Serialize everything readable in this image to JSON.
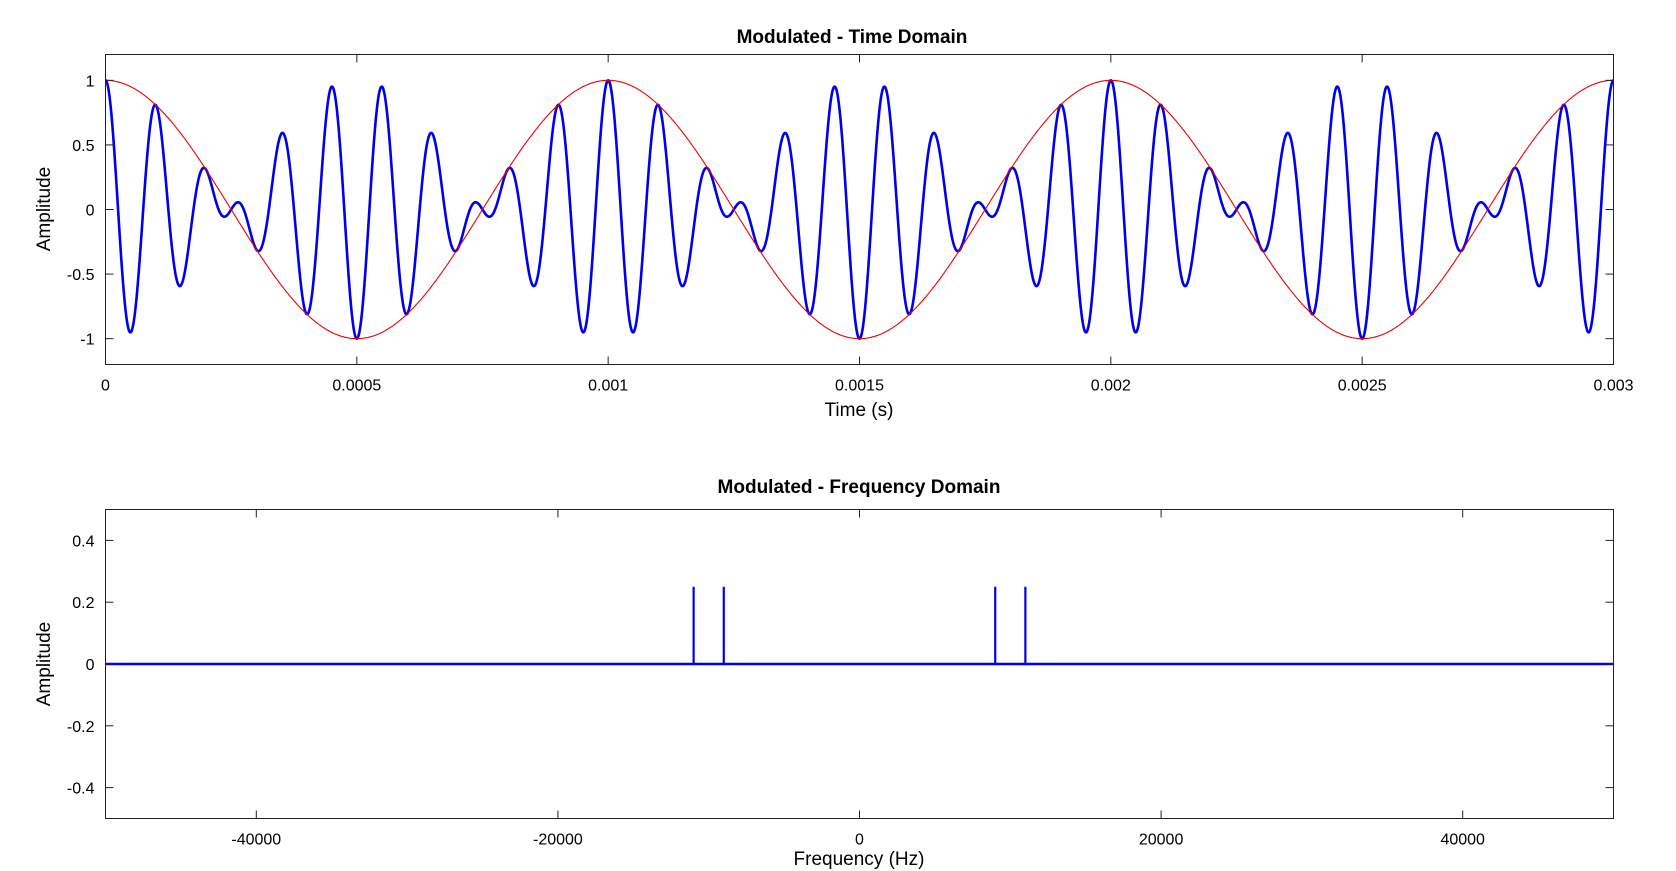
{
  "chart_data": [
    {
      "type": "line",
      "title": "Modulated - Time Domain",
      "xlabel": "Time (s)",
      "ylabel": "Amplitude",
      "xlim": [
        0,
        0.003
      ],
      "ylim": [
        -1.2,
        1.2
      ],
      "xticks": [
        0,
        0.0005,
        0.001,
        0.0015,
        0.002,
        0.0025,
        0.003
      ],
      "xtick_labels": [
        "0",
        "0.0005",
        "0.001",
        "0.0015",
        "0.002",
        "0.0025",
        "0.003"
      ],
      "yticks": [
        1,
        0.5,
        0,
        -0.5,
        -1
      ],
      "ytick_labels": [
        "1",
        "0.5",
        "0",
        "-0.5",
        "-1"
      ],
      "grid": false,
      "series": [
        {
          "role": "modulated signal",
          "color": "#0000ee",
          "expression": "cos(2*pi*1000*t) * cos(2*pi*10000*t)",
          "message_frequency_hz": 1000,
          "carrier_frequency_hz": 10000
        },
        {
          "role": "envelope",
          "color": "#ee0000",
          "expression": "cos(2*pi*1000*t)",
          "frequency_hz": 1000
        }
      ]
    },
    {
      "type": "stem",
      "title": "Modulated - Frequency Domain",
      "xlabel": "Frequency (Hz)",
      "ylabel": "Amplitude",
      "xlim": [
        -50000,
        50000
      ],
      "ylim": [
        -0.5,
        0.5
      ],
      "xticks": [
        -40000,
        -20000,
        0,
        20000,
        40000
      ],
      "xtick_labels": [
        "-40000",
        "-20000",
        "0",
        "20000",
        "40000"
      ],
      "yticks": [
        0.4,
        0.2,
        0,
        -0.2,
        -0.4
      ],
      "ytick_labels": [
        "0.4",
        "0.2",
        "0",
        "-0.2",
        "-0.4"
      ],
      "grid": false,
      "series": [
        {
          "color": "#0000ee",
          "x": [
            -11000,
            -9000,
            9000,
            11000
          ],
          "y": [
            0.25,
            0.25,
            0.25,
            0.25
          ],
          "baseline": 0
        }
      ]
    }
  ]
}
